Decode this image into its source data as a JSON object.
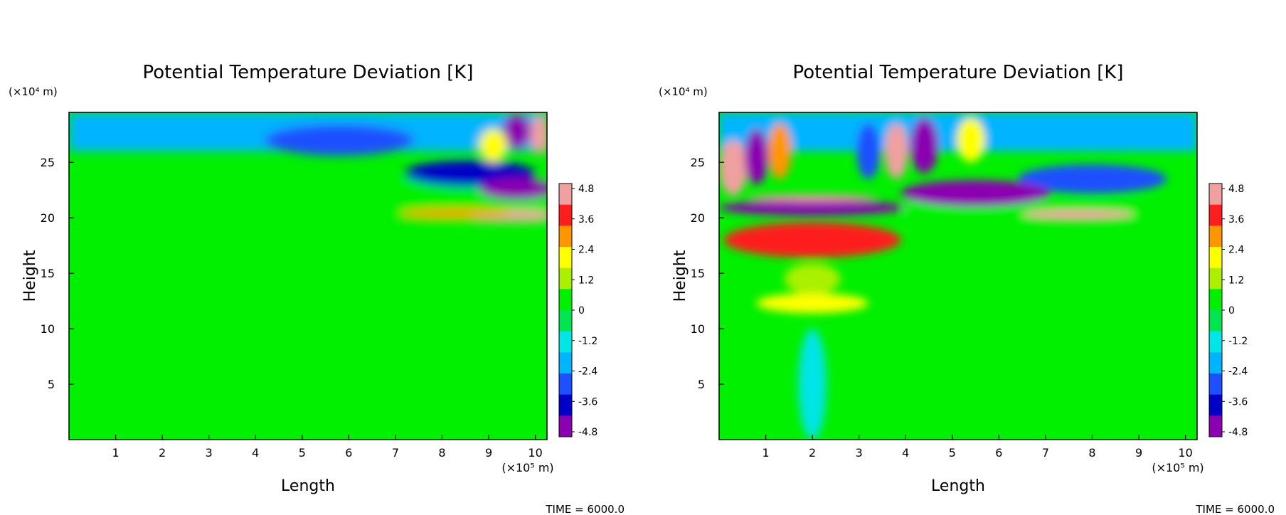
{
  "panels": [
    {
      "title": "Potential Temperature Deviation [K]",
      "y_unit": "(×10⁴ m)",
      "x_unit": "(×10⁵ m)",
      "xlabel": "Length",
      "ylabel": "Height",
      "time_label": "TIME = 6000.0"
    },
    {
      "title": "Potential Temperature Deviation [K]",
      "y_unit": "(×10⁴ m)",
      "x_unit": "(×10⁵ m)",
      "xlabel": "Length",
      "ylabel": "Height",
      "time_label": "TIME = 6000.0"
    }
  ],
  "chart_data": [
    {
      "type": "heatmap",
      "title": "Potential Temperature Deviation [K]",
      "xlabel": "Length",
      "ylabel": "Height",
      "x_unit": "(×10⁵ m)",
      "y_unit": "(×10⁴ m)",
      "xlim": [
        0,
        10.25
      ],
      "ylim": [
        0,
        29.5
      ],
      "x_ticks": [
        "1",
        "2",
        "3",
        "4",
        "5",
        "6",
        "7",
        "8",
        "9",
        "10"
      ],
      "y_ticks": [
        "5",
        "10",
        "15",
        "20",
        "25"
      ],
      "colorbar_labels": [
        "4.8",
        "3.6",
        "2.4",
        "1.2",
        "0",
        "-1.2",
        "-2.4",
        "-3.6",
        "-4.8"
      ],
      "colorbar_range": [
        -4.8,
        4.8
      ],
      "source": "right",
      "features": [
        {
          "shape": "band",
          "x": [
            0,
            10.25
          ],
          "y": [
            19.5,
            21.5
          ],
          "value": 0.7
        },
        {
          "shape": "band",
          "x": [
            0,
            10.25
          ],
          "y": [
            21.5,
            23.5
          ],
          "value": 0.3
        },
        {
          "shape": "band",
          "x": [
            0,
            10.25
          ],
          "y": [
            26,
            29.5
          ],
          "value": -1.8
        },
        {
          "shape": "ellipse",
          "cx": 5.8,
          "cy": 27,
          "rx": 1.6,
          "ry": 1.4,
          "value": -2.6
        },
        {
          "shape": "ellipse",
          "cx": 8.6,
          "cy": 24,
          "rx": 1.4,
          "ry": 1.2,
          "value": -3.2
        },
        {
          "shape": "ellipse",
          "cx": 9.6,
          "cy": 22.6,
          "rx": 0.8,
          "ry": 1.0,
          "value": -4.8
        },
        {
          "shape": "ellipse",
          "cx": 9.5,
          "cy": 20.2,
          "rx": 1.0,
          "ry": 0.5,
          "value": 4.2
        },
        {
          "shape": "ellipse",
          "cx": 8.3,
          "cy": 20.4,
          "rx": 1.2,
          "ry": 0.4,
          "value": 2.8
        },
        {
          "shape": "ellipse",
          "cx": 9.6,
          "cy": 27.8,
          "rx": 0.3,
          "ry": 1.6,
          "value": -4.6
        },
        {
          "shape": "ellipse",
          "cx": 10.1,
          "cy": 27.5,
          "rx": 0.2,
          "ry": 1.8,
          "value": 4.4
        },
        {
          "shape": "ellipse",
          "cx": 9.1,
          "cy": 26.5,
          "rx": 0.3,
          "ry": 1.5,
          "value": 2.0
        }
      ],
      "time": "TIME = 6000.0"
    },
    {
      "type": "heatmap",
      "title": "Potential Temperature Deviation [K]",
      "xlabel": "Length",
      "ylabel": "Height",
      "x_unit": "(×10⁵ m)",
      "y_unit": "(×10⁴ m)",
      "xlim": [
        0,
        10.25
      ],
      "ylim": [
        0,
        29.5
      ],
      "x_ticks": [
        "1",
        "2",
        "3",
        "4",
        "5",
        "6",
        "7",
        "8",
        "9",
        "10"
      ],
      "y_ticks": [
        "5",
        "10",
        "15",
        "20",
        "25"
      ],
      "colorbar_labels": [
        "4.8",
        "3.6",
        "2.4",
        "1.2",
        "0",
        "-1.2",
        "-2.4",
        "-3.6",
        "-4.8"
      ],
      "colorbar_range": [
        -4.8,
        4.8
      ],
      "source": "center",
      "features": [
        {
          "shape": "band",
          "x": [
            4,
            10.25
          ],
          "y": [
            19.5,
            21.5
          ],
          "value": 0.7
        },
        {
          "shape": "band",
          "x": [
            0,
            10.25
          ],
          "y": [
            26,
            29.5
          ],
          "value": -1.8
        },
        {
          "shape": "ellipse",
          "cx": 8.0,
          "cy": 23.5,
          "rx": 1.6,
          "ry": 1.3,
          "value": -3.0
        },
        {
          "shape": "ellipse",
          "cx": 5.5,
          "cy": 22.2,
          "rx": 1.6,
          "ry": 1.2,
          "value": -4.8
        },
        {
          "shape": "ellipse",
          "cx": 7.7,
          "cy": 20.3,
          "rx": 1.2,
          "ry": 0.45,
          "value": 4.2
        },
        {
          "shape": "ellipse",
          "cx": 2.0,
          "cy": 20.9,
          "rx": 2.0,
          "ry": 0.7,
          "value": -4.8
        },
        {
          "shape": "ellipse",
          "cx": 2.0,
          "cy": 18.0,
          "rx": 1.9,
          "ry": 1.6,
          "value": 3.6
        },
        {
          "shape": "ellipse",
          "cx": 2.0,
          "cy": 12.3,
          "rx": 1.2,
          "ry": 0.9,
          "value": 1.8
        },
        {
          "shape": "ellipse",
          "cx": 2.0,
          "cy": 14.5,
          "rx": 0.6,
          "ry": 1.4,
          "value": 1.2
        },
        {
          "shape": "ellipse",
          "cx": 2.0,
          "cy": 5,
          "rx": 0.3,
          "ry": 5,
          "value": -1.0
        },
        {
          "shape": "ellipse",
          "cx": 0.3,
          "cy": 24.5,
          "rx": 0.3,
          "ry": 2.5,
          "value": 4.4
        },
        {
          "shape": "ellipse",
          "cx": 0.8,
          "cy": 25.5,
          "rx": 0.25,
          "ry": 2.5,
          "value": -4.2
        },
        {
          "shape": "ellipse",
          "cx": 1.3,
          "cy": 26,
          "rx": 0.25,
          "ry": 2.5,
          "value": 2.4
        },
        {
          "shape": "ellipse",
          "cx": 3.2,
          "cy": 26,
          "rx": 0.25,
          "ry": 2.5,
          "value": -2.8
        },
        {
          "shape": "ellipse",
          "cx": 3.8,
          "cy": 26,
          "rx": 0.25,
          "ry": 2.5,
          "value": 4.2
        },
        {
          "shape": "ellipse",
          "cx": 4.4,
          "cy": 26.5,
          "rx": 0.3,
          "ry": 2.5,
          "value": -4.6
        },
        {
          "shape": "ellipse",
          "cx": 5.4,
          "cy": 27,
          "rx": 0.3,
          "ry": 2.0,
          "value": 1.6
        },
        {
          "shape": "ellipse",
          "cx": 2.0,
          "cy": 21.8,
          "rx": 1.4,
          "ry": 0.3,
          "value": 4.8
        }
      ],
      "time": "TIME = 6000.0"
    }
  ],
  "colors": {
    "scale": [
      "#8b00b0",
      "#0000c8",
      "#1e50ff",
      "#00b4ff",
      "#00e5e5",
      "#00e650",
      "#00f000",
      "#aaf000",
      "#ffff00",
      "#ff9600",
      "#ff1e1e",
      "#f0a0a0"
    ]
  }
}
